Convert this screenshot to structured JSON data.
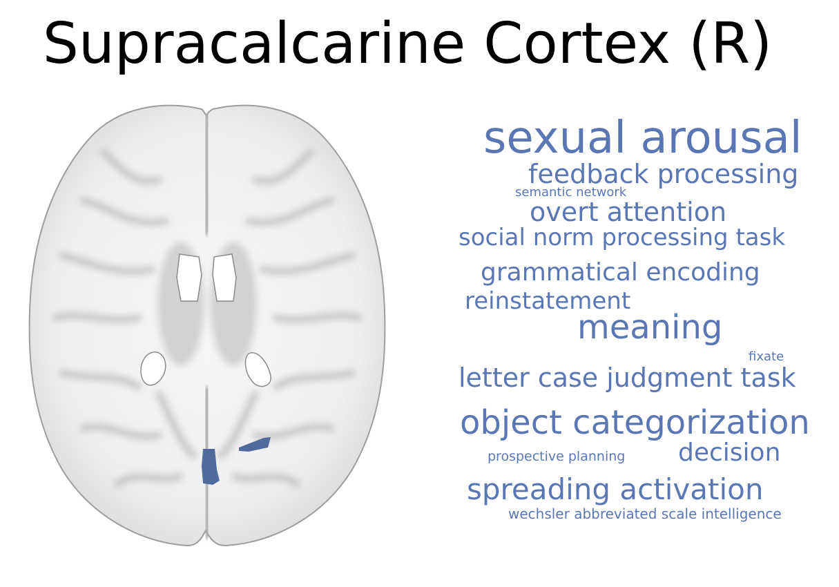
{
  "title": "Supracalcarine Cortex (R)",
  "term_color": "#5b77b3",
  "region_color": "#4f6b9c",
  "brain_image": {
    "view": "axial",
    "description_icon": "brain-axial-slice-icon"
  },
  "word_cloud": {
    "terms": [
      "sexual arousal",
      "feedback processing",
      "semantic network",
      "overt attention",
      "social norm processing task",
      "grammatical encoding",
      "reinstatement",
      "meaning",
      "fixate",
      "letter case judgment task",
      "object categorization",
      "prospective planning",
      "decision",
      "spreading activation",
      "wechsler abbreviated scale intelligence"
    ]
  }
}
